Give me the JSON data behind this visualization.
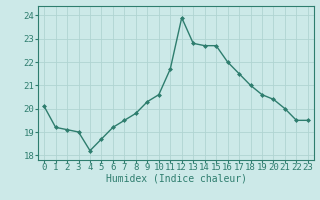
{
  "x": [
    0,
    1,
    2,
    3,
    4,
    5,
    6,
    7,
    8,
    9,
    10,
    11,
    12,
    13,
    14,
    15,
    16,
    17,
    18,
    19,
    20,
    21,
    22,
    23
  ],
  "y": [
    20.1,
    19.2,
    19.1,
    19.0,
    18.2,
    18.7,
    19.2,
    19.5,
    19.8,
    20.3,
    20.6,
    21.7,
    23.9,
    22.8,
    22.7,
    22.7,
    22.0,
    21.5,
    21.0,
    20.6,
    20.4,
    20.0,
    19.5,
    19.5
  ],
  "line_color": "#2e7d6e",
  "marker": "D",
  "marker_size": 2.0,
  "bg_color": "#cce9e8",
  "grid_color": "#b0d4d2",
  "xlabel": "Humidex (Indice chaleur)",
  "xlabel_fontsize": 7,
  "tick_fontsize": 6.5,
  "ylim": [
    17.8,
    24.4
  ],
  "xlim": [
    -0.5,
    23.5
  ],
  "yticks": [
    18,
    19,
    20,
    21,
    22,
    23,
    24
  ],
  "xticks": [
    0,
    1,
    2,
    3,
    4,
    5,
    6,
    7,
    8,
    9,
    10,
    11,
    12,
    13,
    14,
    15,
    16,
    17,
    18,
    19,
    20,
    21,
    22,
    23
  ],
  "linewidth": 1.0
}
